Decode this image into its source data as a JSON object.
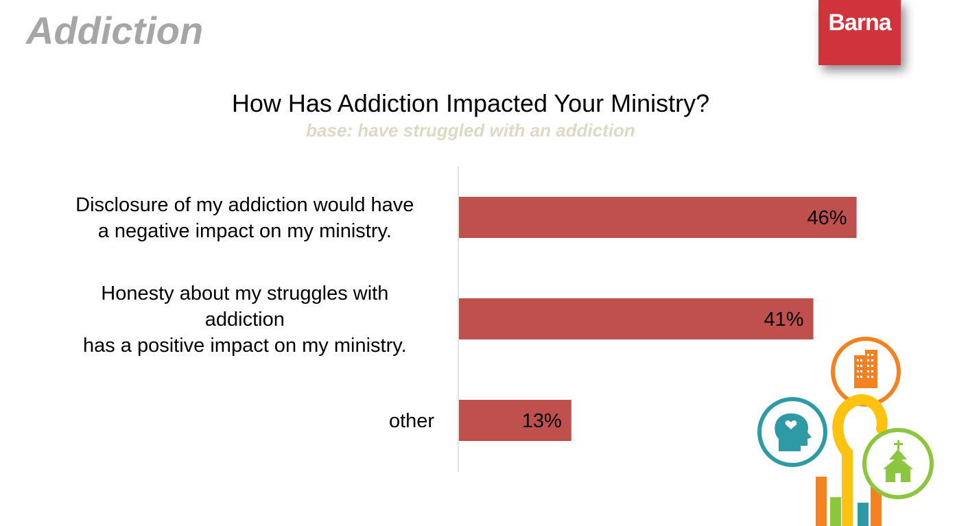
{
  "section_title": "Addiction",
  "logo_text": "Barna",
  "colors": {
    "bar": "#c0504d",
    "logo": "#d0343a",
    "subtitle": "#ddd9c4",
    "section_title": "#a6a6a6"
  },
  "chart_data": {
    "type": "bar",
    "orientation": "horizontal",
    "title": "How Has Addiction Impacted Your Ministry?",
    "subtitle": "base: have struggled with an addiction",
    "categories": [
      [
        "Disclosure of my addiction would have",
        "a negative impact on my ministry."
      ],
      [
        "Honesty about my struggles with",
        "addiction",
        "has a positive impact on my ministry."
      ],
      [
        "other"
      ]
    ],
    "values": [
      46,
      41,
      13
    ],
    "value_labels": [
      "46%",
      "41%",
      "13%"
    ],
    "xlim": [
      0,
      55
    ],
    "grid": false,
    "legend": "none"
  },
  "decoration": {
    "icons": [
      "building-icon",
      "head-heart-icon",
      "church-icon",
      "bar-chart-icon"
    ]
  }
}
